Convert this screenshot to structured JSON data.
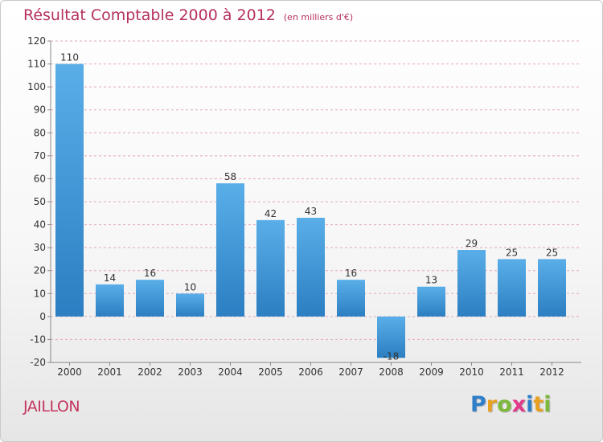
{
  "title": "Résultat Comptable 2000 à 2012",
  "subtitle": "(en milliers d'€)",
  "commune": "JAILLON",
  "logo": {
    "letters": [
      "P",
      "r",
      "o",
      "x",
      "i",
      "t",
      "i"
    ],
    "colors": [
      "#2f7ec8",
      "#e8a020",
      "#7cb83a",
      "#e23a8a",
      "#2f7ec8",
      "#e8a020",
      "#7cb83a"
    ]
  },
  "chart_data": {
    "type": "bar",
    "title": "Résultat Comptable 2000 à 2012",
    "xlabel": "",
    "ylabel": "",
    "ylim": [
      -20,
      120
    ],
    "yticks": [
      -20,
      -10,
      0,
      10,
      20,
      30,
      40,
      50,
      60,
      70,
      80,
      90,
      100,
      110,
      120
    ],
    "grid": true,
    "categories": [
      "2000",
      "2001",
      "2002",
      "2003",
      "2004",
      "2005",
      "2006",
      "2007",
      "2008",
      "2009",
      "2010",
      "2011",
      "2012"
    ],
    "values": [
      110,
      14,
      16,
      10,
      58,
      42,
      43,
      16,
      -18,
      13,
      29,
      25,
      25
    ],
    "colors": {
      "bar_light": "#5aaee8",
      "bar_dark": "#2b7fc2",
      "grid": "#e3a8b8",
      "axis": "#888888",
      "text": "#333333"
    }
  }
}
